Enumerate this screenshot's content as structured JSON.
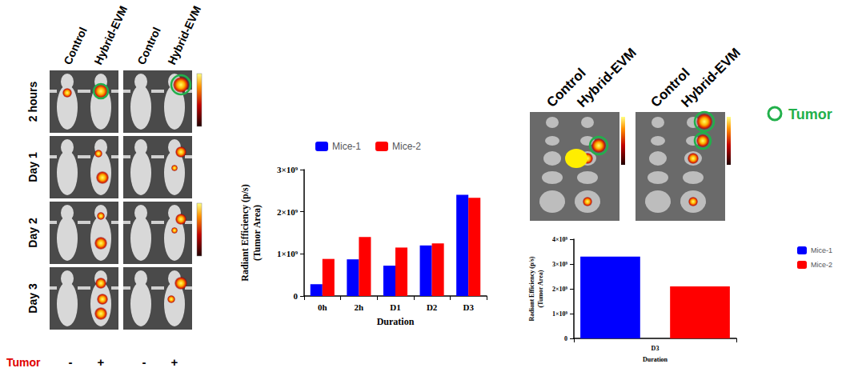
{
  "panels": {
    "in_vivo": {
      "columns": [
        "Control",
        "Hybrid-EVM",
        "Control",
        "Hybrid-EVM"
      ],
      "rows": [
        "2 hours",
        "Day 1",
        "Day 2",
        "Day 3"
      ],
      "tumor_label": "Tumor",
      "tumor_status": [
        "-",
        "+",
        "-",
        "+"
      ]
    },
    "ex_vivo": {
      "columns": [
        "Control",
        "Hybrid-EVM",
        "Control",
        "Hybrid-EVM"
      ],
      "legend": "Tumor"
    }
  },
  "chart_data": [
    {
      "type": "bar",
      "categories": [
        "0h",
        "2h",
        "D1",
        "D2",
        "D3"
      ],
      "series": [
        {
          "name": "Mice-1",
          "color": "#0000ff",
          "values": [
            280000000,
            870000000,
            720000000,
            1200000000,
            2400000000
          ]
        },
        {
          "name": "Mice-2",
          "color": "#ff0000",
          "values": [
            880000000,
            1400000000,
            1150000000,
            1250000000,
            2330000000
          ]
        }
      ],
      "x_label": "Duration",
      "y_label": "Radiant Efficiency (p/s)\n(Tumor Area)",
      "ylim": [
        0,
        3000000000
      ],
      "yticks": [
        0,
        {
          "value": 1000000000,
          "label": "1×10⁹"
        },
        {
          "value": 2000000000,
          "label": "2×10⁹"
        },
        {
          "value": 3000000000,
          "label": "3×10⁹"
        }
      ],
      "legend": "top",
      "grid": false
    },
    {
      "type": "bar",
      "categories": [
        "D3"
      ],
      "series": [
        {
          "name": "Mice-1",
          "color": "#0000ff",
          "values": [
            3300000000
          ]
        },
        {
          "name": "Mice-2",
          "color": "#ff0000",
          "values": [
            2100000000
          ]
        }
      ],
      "x_label": "Duration",
      "y_label": "Radiant Efficiency (p/s)\n(Tumor Area)",
      "ylim": [
        0,
        4000000000
      ],
      "yticks": [
        0,
        {
          "value": 1000000000,
          "label": "1×10⁹"
        },
        {
          "value": 2000000000,
          "label": "2×10⁹"
        },
        {
          "value": 3000000000,
          "label": "3×10⁹"
        },
        {
          "value": 4000000000,
          "label": "4×10⁹"
        }
      ],
      "legend": "right",
      "grid": false
    }
  ]
}
